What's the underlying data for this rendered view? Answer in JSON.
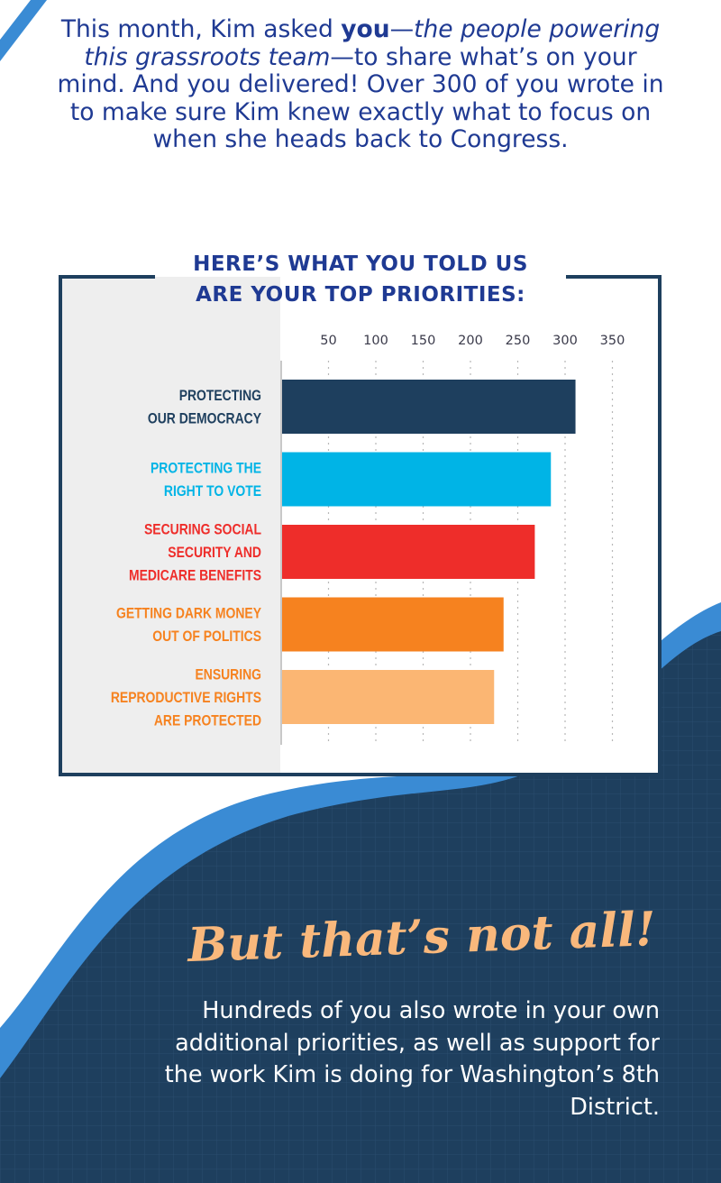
{
  "intro": {
    "part1": "This month, Kim asked ",
    "bold": "you",
    "dash1": "—",
    "italic": "the people powering this grassroots team",
    "part2": "—to share what’s on your mind. And you delivered! Over 300 of you wrote in to make sure Kim knew exactly what to focus on when she heads back to Congress."
  },
  "chart_title": {
    "line1": "HERE’S WHAT YOU TOLD US",
    "line2": "ARE YOUR TOP PRIORITIES:"
  },
  "chart_data": {
    "type": "bar",
    "orientation": "horizontal",
    "xlim": [
      0,
      350
    ],
    "ticks": [
      50,
      100,
      150,
      200,
      250,
      300,
      350
    ],
    "grid": true,
    "bars": [
      {
        "label": [
          "PROTECTING",
          "OUR DEMOCRACY"
        ],
        "value": 311,
        "color": "#1e3f5e",
        "label_color": "#1e3f5e"
      },
      {
        "label": [
          "PROTECTING THE",
          "RIGHT TO VOTE"
        ],
        "value": 285,
        "color": "#00b4e6",
        "label_color": "#00b4e6"
      },
      {
        "label": [
          "SECURING SOCIAL",
          "SECURITY AND",
          "MEDICARE BENEFITS"
        ],
        "value": 268,
        "color": "#ee2d2a",
        "label_color": "#ee2d2a"
      },
      {
        "label": [
          "GETTING DARK MONEY",
          "OUT OF POLITICS"
        ],
        "value": 235,
        "color": "#f6821f",
        "label_color": "#f6821f"
      },
      {
        "label": [
          "ENSURING",
          "REPRODUCTIVE RIGHTS",
          "ARE PROTECTED"
        ],
        "value": 225,
        "color": "#fbb673",
        "label_color": "#f6821f"
      }
    ]
  },
  "footer": {
    "heading": "But that’s not all!",
    "text": "Hundreds of you also wrote in your own additional priorities, as well as support for the work Kim is doing for Washington’s 8th District."
  },
  "colors": {
    "navy": "#1e3f5e",
    "blue_band": "#3a8bd4",
    "title_blue": "#1f3a93",
    "accent_peach": "#f9b87c"
  }
}
